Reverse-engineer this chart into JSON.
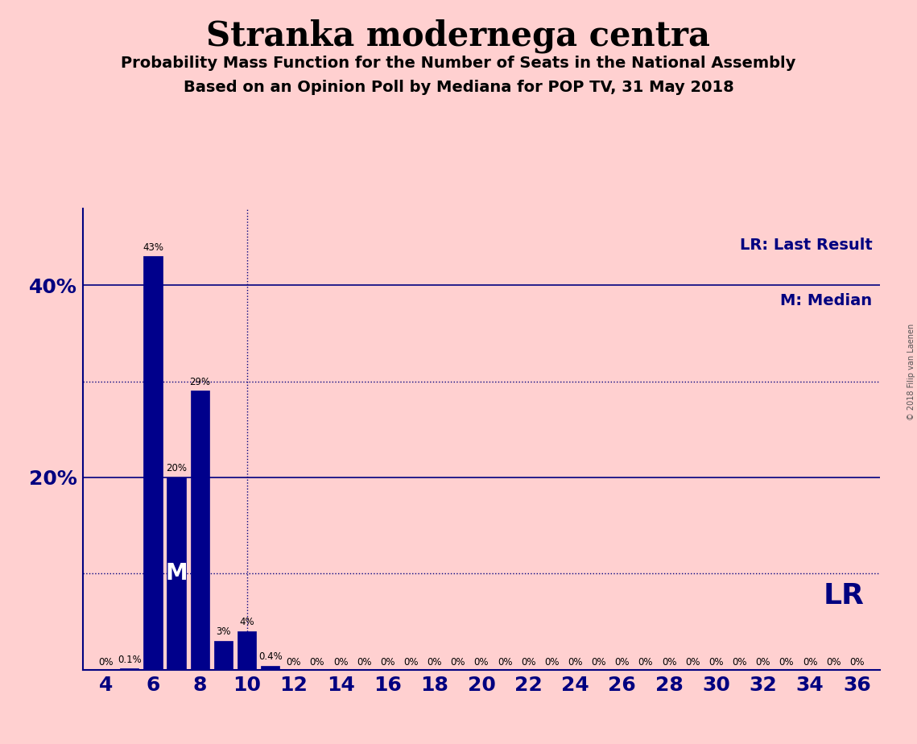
{
  "title": "Stranka modernega centra",
  "subtitle1": "Probability Mass Function for the Number of Seats in the National Assembly",
  "subtitle2": "Based on an Opinion Poll by Mediana for POP TV, 31 May 2018",
  "copyright": "© 2018 Filip van Laenen",
  "seats": [
    4,
    5,
    6,
    7,
    8,
    9,
    10,
    11,
    12,
    13,
    14,
    15,
    16,
    17,
    18,
    19,
    20,
    21,
    22,
    23,
    24,
    25,
    26,
    27,
    28,
    29,
    30,
    31,
    32,
    33,
    34,
    35,
    36
  ],
  "probabilities": [
    0.0,
    0.001,
    0.43,
    0.2,
    0.29,
    0.03,
    0.04,
    0.004,
    0.0,
    0.0,
    0.0,
    0.0,
    0.0,
    0.0,
    0.0,
    0.0,
    0.0,
    0.0,
    0.0,
    0.0,
    0.0,
    0.0,
    0.0,
    0.0,
    0.0,
    0.0,
    0.0,
    0.0,
    0.0,
    0.0,
    0.0,
    0.0,
    0.0
  ],
  "bar_labels": [
    "0%",
    "0.1%",
    "43%",
    "20%",
    "29%",
    "3%",
    "4%",
    "0.4%",
    "0%",
    "0%",
    "0%",
    "0%",
    "0%",
    "0%",
    "0%",
    "0%",
    "0%",
    "0%",
    "0%",
    "0%",
    "0%",
    "0%",
    "0%",
    "0%",
    "0%",
    "0%",
    "0%",
    "0%",
    "0%",
    "0%",
    "0%",
    "0%",
    "0%"
  ],
  "bar_color": "#00008B",
  "background_color": "#FFD0D0",
  "text_color": "#000080",
  "median_seat": 7,
  "last_result_seat": 10,
  "ylim": [
    0,
    0.48
  ],
  "ytick_positions": [
    0.2,
    0.4
  ],
  "ytick_labels": [
    "20%",
    "40%"
  ],
  "legend_lr": "LR: Last Result",
  "legend_m": "M: Median",
  "lr_label": "LR",
  "m_label": "M",
  "dotted_lines": [
    0.1,
    0.3
  ],
  "solid_lines": [
    0.2,
    0.4
  ],
  "line_color": "#000080",
  "xtick_step": 2,
  "xmin": 3,
  "xmax": 37
}
